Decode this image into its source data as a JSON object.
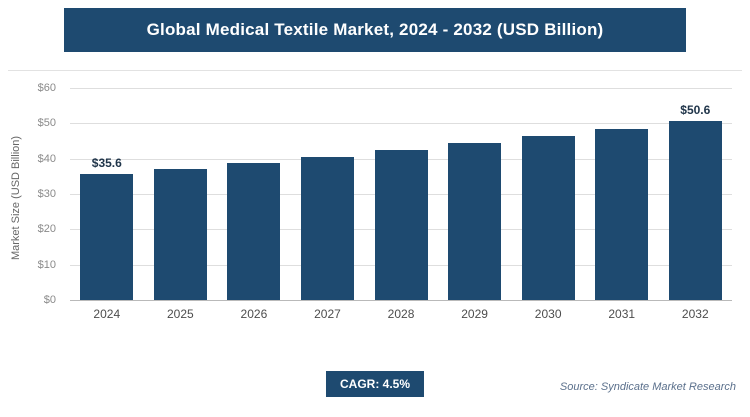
{
  "title": "Global Medical Textile Market, 2024 - 2032 (USD Billion)",
  "colors": {
    "primary": "#1e4a70",
    "gridline": "#dedede",
    "axis_text": "#8a8a8a"
  },
  "chart_data": {
    "type": "bar",
    "title": "Global Medical Textile Market, 2024 - 2032 (USD Billion)",
    "categories": [
      "2024",
      "2025",
      "2026",
      "2027",
      "2028",
      "2029",
      "2030",
      "2031",
      "2032"
    ],
    "values": [
      35.6,
      37.2,
      38.9,
      40.6,
      42.4,
      44.4,
      46.4,
      48.4,
      50.6
    ],
    "data_labels": [
      "$35.6",
      "",
      "",
      "",
      "",
      "",
      "",
      "",
      "$50.6"
    ],
    "xlabel": "",
    "ylabel": "Market Size (USD Billion)",
    "ylim": [
      0,
      60
    ],
    "yticks": [
      0,
      10,
      20,
      30,
      40,
      50,
      60
    ],
    "ytick_prefix": "$",
    "grid": "horizontal",
    "legend": "none",
    "bar_color": "#1e4a70"
  },
  "footer": {
    "cagr_label": "CAGR: 4.5%",
    "source": "Source: Syndicate Market Research"
  }
}
